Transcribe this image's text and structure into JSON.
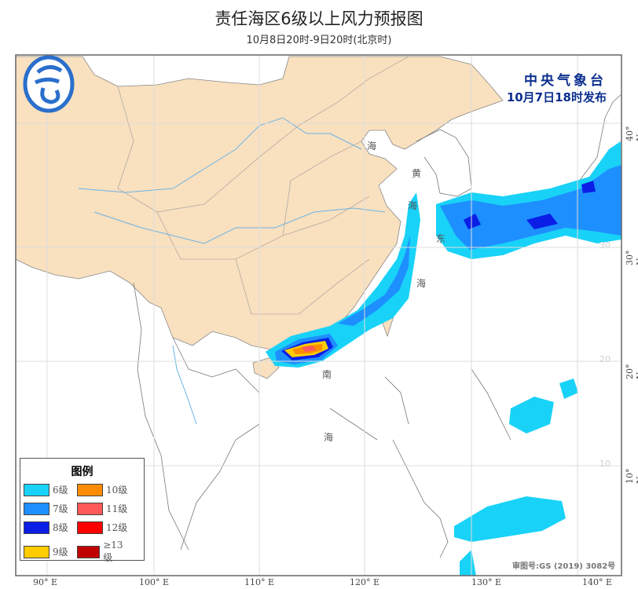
{
  "header": {
    "title": "责任海区6级以上风力预报图",
    "subtitle": "10月8日20时-9日20时(北京时)"
  },
  "issuer": {
    "org": "中央气象台",
    "issue_time": "10月7日18时发布",
    "logo_icon": "cma-logo"
  },
  "legend": {
    "title": "图例",
    "items": [
      {
        "label": "6级",
        "color": "#19d2f7"
      },
      {
        "label": "10级",
        "color": "#ff8c00"
      },
      {
        "label": "7级",
        "color": "#1e8fff"
      },
      {
        "label": "11级",
        "color": "#ff5a5a"
      },
      {
        "label": "8级",
        "color": "#0a1ee6"
      },
      {
        "label": "12级",
        "color": "#ff0000"
      },
      {
        "label": "9级",
        "color": "#ffcc00"
      },
      {
        "label": "≥13级",
        "color": "#c00000"
      }
    ]
  },
  "axes": {
    "lon_labels": [
      "90° E",
      "100° E",
      "110° E",
      "120° E",
      "130° E",
      "140° E"
    ],
    "lat_labels": [
      "40° N",
      "30° N",
      "20° N",
      "10° N"
    ],
    "inner_lat_labels": [
      "30",
      "20",
      "10"
    ]
  },
  "seas": {
    "bohai": "海",
    "huang1": "黄",
    "huang2": "海",
    "dong1": "东",
    "dong2": "海",
    "nan1": "南",
    "nan2": "海"
  },
  "colors": {
    "china_land": "#f9e0bf",
    "river": "#6cb4e4",
    "grid": "#dddddd"
  },
  "stamp": "审图号:GS (2019) 3082号"
}
